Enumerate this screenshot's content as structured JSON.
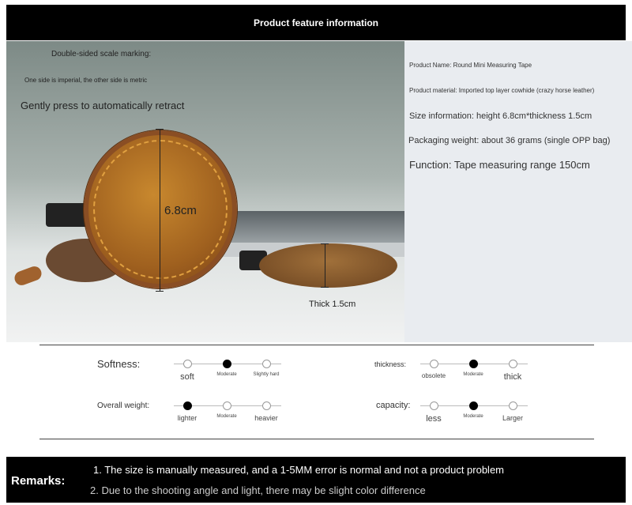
{
  "header": {
    "title": "Product feature information"
  },
  "photo": {
    "caption1": "Double-sided scale marking:",
    "caption2": "One side is imperial, the other side is metric",
    "caption3": "Gently press to automatically retract",
    "height_label": "6.8cm",
    "thickness_label": "Thick 1.5cm"
  },
  "info": {
    "name": "Product Name: Round Mini Measuring Tape",
    "material": "Product material: Imported top layer cowhide (crazy horse leather)",
    "size": "Size information: height 6.8cm*thickness 1.5cm",
    "weight": "Packaging weight: about 36 grams (single OPP bag)",
    "function": "Function: Tape measuring range 150cm"
  },
  "ratings": [
    {
      "label": "Softness:",
      "options": [
        "soft",
        "Moderate",
        "Slightly hard"
      ],
      "selected": 1
    },
    {
      "label": "thickness:",
      "options": [
        "obsolete",
        "Moderate",
        "thick"
      ],
      "selected": 1
    },
    {
      "label": "Overall weight:",
      "options": [
        "lighter",
        "Moderate",
        "heavier"
      ],
      "selected": 0
    },
    {
      "label": "capacity:",
      "options": [
        "less",
        "Moderate",
        "Larger"
      ],
      "selected": 1
    }
  ],
  "remarks": {
    "label": "Remarks:",
    "line1": "1. The size is manually measured, and a 1-5MM error is normal and not a product problem",
    "line2": "2. Due to the shooting angle and light, there may be slight color difference"
  }
}
